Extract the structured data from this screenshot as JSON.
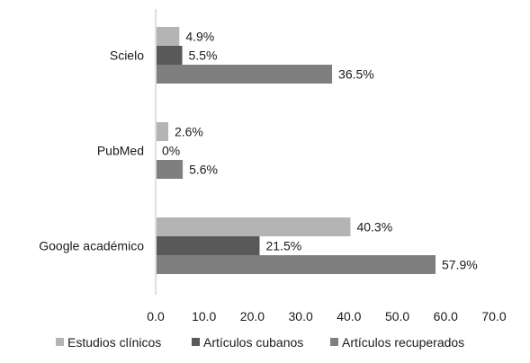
{
  "chart_data": {
    "type": "bar",
    "orientation": "horizontal",
    "categories": [
      "Scielo",
      "PubMed",
      "Google académico"
    ],
    "series": [
      {
        "name": "Estudios clínicos",
        "values": [
          4.9,
          2.6,
          40.3
        ],
        "labels": [
          "4.9%",
          "2.6%",
          "40.3%"
        ],
        "color": "#b4b4b4"
      },
      {
        "name": "Artículos cubanos",
        "values": [
          5.5,
          0,
          21.5
        ],
        "labels": [
          "5.5%",
          "0%",
          "21.5%"
        ],
        "color": "#595959"
      },
      {
        "name": "Artículos recuperados",
        "values": [
          36.5,
          5.6,
          57.9
        ],
        "labels": [
          "36.5%",
          "5.6%",
          "57.9%"
        ],
        "color": "#7f7f7f"
      }
    ],
    "xlim": [
      0,
      70
    ],
    "xticks": [
      "0.0",
      "10.0",
      "20.0",
      "30.0",
      "40.0",
      "50.0",
      "60.0",
      "70.0"
    ],
    "grid": false,
    "legend_position": "bottom"
  }
}
